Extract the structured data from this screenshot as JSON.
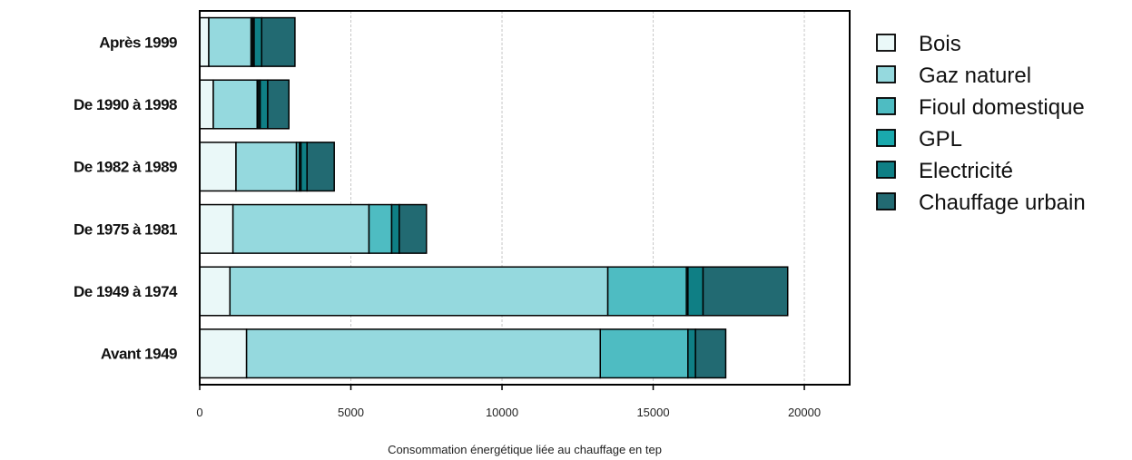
{
  "chart_data": {
    "type": "bar",
    "orientation": "horizontal",
    "stacked": true,
    "categories": [
      "Après 1999",
      "De 1990 à 1998",
      "De 1982 à 1989",
      "De 1975 à 1981",
      "De 1949 à 1974",
      "Avant 1949"
    ],
    "series": [
      {
        "name": "Bois",
        "color": "#eaf8f8",
        "values": [
          300,
          450,
          1200,
          1100,
          1000,
          1550
        ]
      },
      {
        "name": "Gaz naturel",
        "color": "#95d9de",
        "values": [
          1400,
          1450,
          2000,
          4500,
          12500,
          11700
        ]
      },
      {
        "name": "Fioul domestique",
        "color": "#4ebcc2",
        "values": [
          50,
          50,
          100,
          750,
          2600,
          2900
        ]
      },
      {
        "name": "GPL",
        "color": "#1aa9ad",
        "values": [
          50,
          50,
          50,
          0,
          50,
          0
        ]
      },
      {
        "name": "Electricité",
        "color": "#0f7f85",
        "values": [
          250,
          250,
          200,
          250,
          500,
          250
        ]
      },
      {
        "name": "Chauffage urbain",
        "color": "#226a72",
        "values": [
          1100,
          700,
          900,
          900,
          2800,
          1000
        ]
      }
    ],
    "xlabel": "Consommation énergétique liée au chauffage en tep",
    "ylabel": "",
    "xlim": [
      0,
      21500
    ],
    "xticks": [
      0,
      5000,
      10000,
      15000,
      20000
    ],
    "grid": "vertical-dashed",
    "legend_position": "right"
  }
}
